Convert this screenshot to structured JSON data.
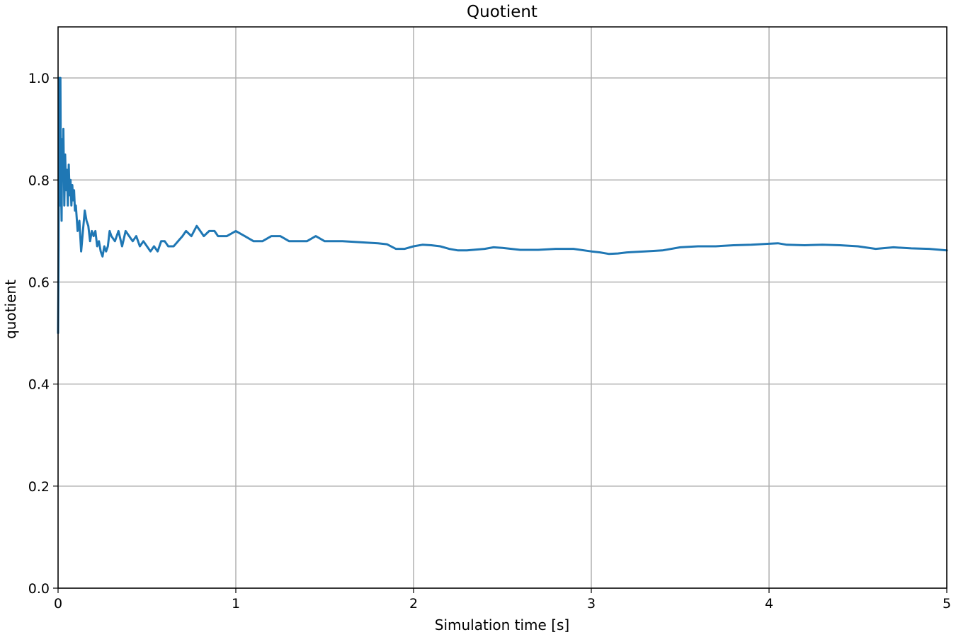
{
  "chart_data": {
    "type": "line",
    "title": "Quotient",
    "xlabel": "Simulation time [s]",
    "ylabel": "quotient",
    "xlim": [
      0,
      5
    ],
    "ylim": [
      0,
      1.1
    ],
    "grid": true,
    "x_ticks": [
      "0",
      "1",
      "2",
      "3",
      "4",
      "5"
    ],
    "y_ticks": [
      "0.0",
      "0.2",
      "0.4",
      "0.6",
      "0.8",
      "1.0"
    ],
    "series": [
      {
        "color": "#1f77b4",
        "x": [
          0,
          0.003,
          0.006,
          0.01,
          0.013,
          0.016,
          0.02,
          0.023,
          0.027,
          0.03,
          0.035,
          0.04,
          0.045,
          0.05,
          0.055,
          0.06,
          0.065,
          0.07,
          0.075,
          0.08,
          0.085,
          0.09,
          0.095,
          0.1,
          0.11,
          0.12,
          0.13,
          0.14,
          0.15,
          0.16,
          0.17,
          0.18,
          0.19,
          0.2,
          0.21,
          0.22,
          0.23,
          0.24,
          0.25,
          0.26,
          0.27,
          0.28,
          0.29,
          0.3,
          0.32,
          0.34,
          0.36,
          0.38,
          0.4,
          0.42,
          0.44,
          0.46,
          0.48,
          0.5,
          0.52,
          0.54,
          0.56,
          0.58,
          0.6,
          0.62,
          0.65,
          0.7,
          0.72,
          0.75,
          0.78,
          0.8,
          0.82,
          0.85,
          0.88,
          0.9,
          0.95,
          1.0,
          1.05,
          1.1,
          1.15,
          1.2,
          1.25,
          1.3,
          1.35,
          1.4,
          1.45,
          1.5,
          1.6,
          1.7,
          1.8,
          1.85,
          1.9,
          1.95,
          2.0,
          2.05,
          2.1,
          2.15,
          2.2,
          2.25,
          2.3,
          2.4,
          2.45,
          2.5,
          2.55,
          2.6,
          2.7,
          2.8,
          2.85,
          2.9,
          3.0,
          3.05,
          3.1,
          3.15,
          3.2,
          3.3,
          3.4,
          3.5,
          3.6,
          3.7,
          3.8,
          3.9,
          4.0,
          4.05,
          4.1,
          4.2,
          4.3,
          4.4,
          4.5,
          4.6,
          4.7,
          4.8,
          4.9,
          5.0
        ],
        "y": [
          0.5,
          0.67,
          1.0,
          0.75,
          1.0,
          0.8,
          0.72,
          0.88,
          0.8,
          0.9,
          0.75,
          0.85,
          0.78,
          0.82,
          0.75,
          0.83,
          0.77,
          0.8,
          0.75,
          0.79,
          0.76,
          0.78,
          0.74,
          0.75,
          0.7,
          0.72,
          0.66,
          0.7,
          0.74,
          0.72,
          0.71,
          0.68,
          0.7,
          0.69,
          0.7,
          0.67,
          0.68,
          0.66,
          0.65,
          0.67,
          0.66,
          0.67,
          0.7,
          0.69,
          0.68,
          0.7,
          0.67,
          0.7,
          0.69,
          0.68,
          0.69,
          0.67,
          0.68,
          0.67,
          0.66,
          0.67,
          0.66,
          0.68,
          0.68,
          0.67,
          0.67,
          0.69,
          0.7,
          0.69,
          0.71,
          0.7,
          0.69,
          0.7,
          0.7,
          0.69,
          0.69,
          0.7,
          0.69,
          0.68,
          0.68,
          0.69,
          0.69,
          0.68,
          0.68,
          0.68,
          0.69,
          0.68,
          0.68,
          0.678,
          0.676,
          0.674,
          0.665,
          0.665,
          0.67,
          0.673,
          0.672,
          0.67,
          0.665,
          0.662,
          0.662,
          0.665,
          0.668,
          0.667,
          0.665,
          0.663,
          0.663,
          0.665,
          0.665,
          0.665,
          0.66,
          0.658,
          0.655,
          0.656,
          0.658,
          0.66,
          0.662,
          0.668,
          0.67,
          0.67,
          0.672,
          0.673,
          0.675,
          0.676,
          0.673,
          0.672,
          0.673,
          0.672,
          0.67,
          0.665,
          0.668,
          0.666,
          0.665,
          0.662
        ]
      }
    ]
  }
}
